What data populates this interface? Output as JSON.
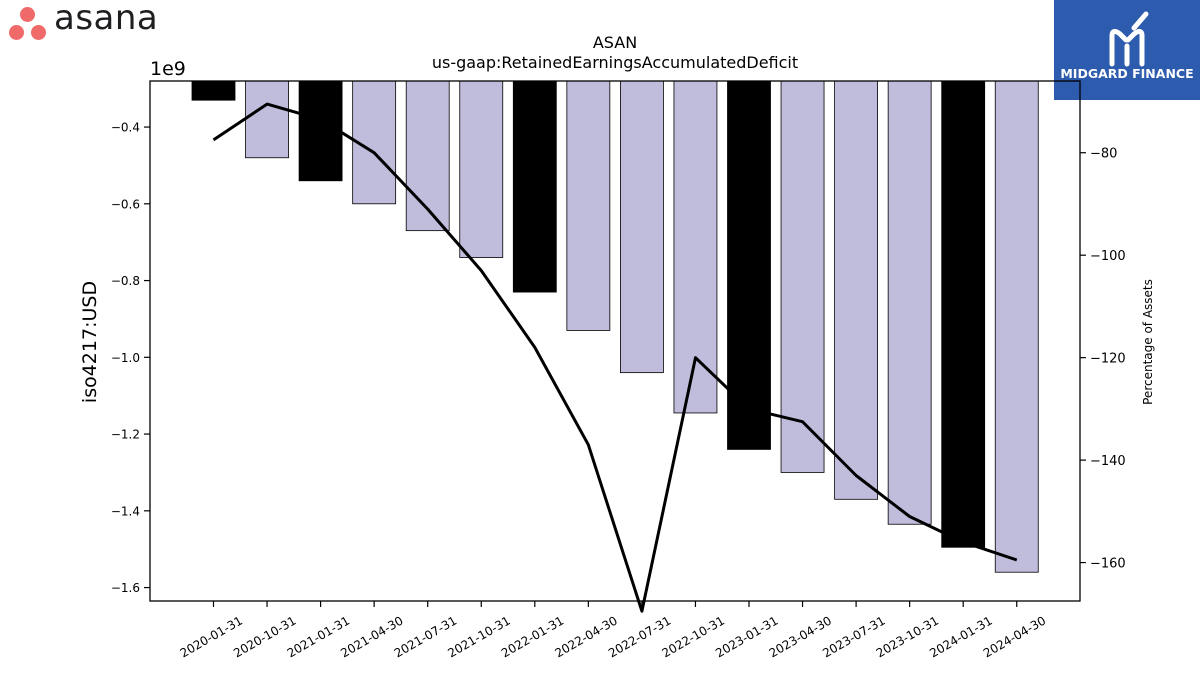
{
  "brand": {
    "name": "asana",
    "color": "#f06a6a"
  },
  "watermark": {
    "text": "MIDGARD FINANCE",
    "color": "#2d5bad"
  },
  "chart_data": {
    "type": "bar",
    "title": "ASAN",
    "subtitle": "us-gaap:RetainedEarningsAccumulatedDeficit",
    "ylabel": "iso4217:USD",
    "y_offset_label": "1e9",
    "y2label": "Percentage of Assets",
    "categories": [
      "2020-01-31",
      "2020-10-31",
      "2021-01-31",
      "2021-04-30",
      "2021-07-31",
      "2021-10-31",
      "2022-01-31",
      "2022-04-30",
      "2022-07-31",
      "2022-10-31",
      "2023-01-31",
      "2023-04-30",
      "2023-07-31",
      "2023-10-31",
      "2024-01-31",
      "2024-04-30"
    ],
    "values": [
      -0.33,
      -0.48,
      -0.54,
      -0.6,
      -0.67,
      -0.74,
      -0.83,
      -0.93,
      -1.04,
      -1.145,
      -1.24,
      -1.3,
      -1.37,
      -1.435,
      -1.495,
      -1.56
    ],
    "fiscal_year_end": [
      true,
      false,
      true,
      false,
      false,
      false,
      true,
      false,
      false,
      false,
      true,
      false,
      false,
      false,
      true,
      false
    ],
    "colors": {
      "bar_fy": "#000000",
      "bar_q": "#bfbcdc",
      "line": "#000000"
    },
    "ylim": [
      -1.635,
      -0.28
    ],
    "yticks": [
      -0.4,
      -0.6,
      -0.8,
      -1.0,
      -1.2,
      -1.4,
      -1.6
    ],
    "ytick_labels": [
      "−0.4",
      "−0.6",
      "−0.8",
      "−1.0",
      "−1.2",
      "−1.4",
      "−1.6"
    ],
    "series": [
      {
        "values": [
          -77.5,
          -70.5,
          -73.5,
          -80.0,
          -91.0,
          -103.0,
          -118.0,
          -137.0,
          -169.5,
          -120.0,
          -130.0,
          -132.5,
          -143.0,
          -151.0,
          -156.0,
          -159.5
        ]
      }
    ],
    "y2lim": [
      -167.5,
      -66.0
    ],
    "y2ticks": [
      -80,
      -100,
      -120,
      -140,
      -160
    ],
    "y2tick_labels": [
      "−80",
      "−100",
      "−120",
      "−140",
      "−160"
    ]
  }
}
